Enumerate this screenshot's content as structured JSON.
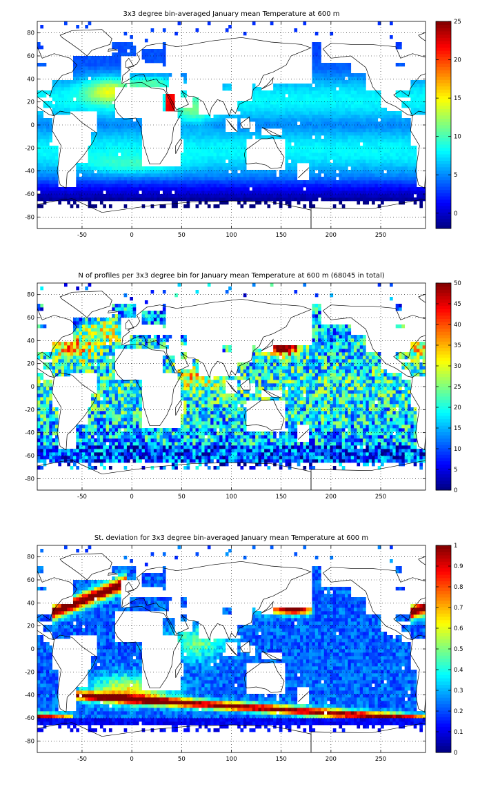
{
  "panels": [
    {
      "title": "3x3 degree bin-averaged January mean Temperature at 600 m",
      "field": "temperature",
      "chart_data": {
        "type": "heatmap",
        "title": "3x3 degree bin-averaged January mean Temperature at 600 m",
        "xlabel": "",
        "ylabel": "",
        "xlim": [
          -95,
          295
        ],
        "ylim": [
          -90,
          90
        ],
        "xticks": [
          -50,
          0,
          50,
          100,
          150,
          200,
          250
        ],
        "yticks": [
          -80,
          -60,
          -40,
          -20,
          0,
          20,
          40,
          60,
          80
        ],
        "colorbar": {
          "min": -2,
          "max": 25,
          "ticks": [
            0,
            5,
            10,
            15,
            20,
            25
          ],
          "colormap": "jet"
        },
        "bin_size_deg": 3,
        "grid": true,
        "legend": "colorbar right",
        "values_approx": [
          {
            "region": "Mediterranean outflow (North Atlantic, 20N-40N)",
            "value": 14
          },
          {
            "region": "Mediterranean Sea",
            "value": 13.5
          },
          {
            "region": "Red Sea",
            "value": 21.5
          },
          {
            "region": "Northern Indian Ocean / Arabian Sea",
            "value": 11
          },
          {
            "region": "South Atlantic / South Indian subtropics",
            "value": 9
          },
          {
            "region": "North Pacific subtropics",
            "value": 7
          },
          {
            "region": "Tropical Pacific",
            "value": 6
          },
          {
            "region": "Labrador / Nordic Seas",
            "value": 3
          },
          {
            "region": "Southern Ocean (55S-70S)",
            "value": 1.5
          }
        ]
      }
    },
    {
      "title": "N of profiles per 3x3 degree bin for January mean Temperature at 600 m (68045 in total)",
      "field": "count",
      "chart_data": {
        "type": "heatmap",
        "title": "N of profiles per 3x3 degree bin for January mean Temperature at 600 m (68045 in total)",
        "xlabel": "",
        "ylabel": "",
        "xlim": [
          -95,
          295
        ],
        "ylim": [
          -90,
          90
        ],
        "xticks": [
          -50,
          0,
          50,
          100,
          150,
          200,
          250
        ],
        "yticks": [
          -80,
          -60,
          -40,
          -20,
          0,
          20,
          40,
          60,
          80
        ],
        "colorbar": {
          "min": 0,
          "max": 50,
          "ticks": [
            0,
            5,
            10,
            15,
            20,
            25,
            30,
            35,
            40,
            45,
            50
          ],
          "colormap": "jet"
        },
        "bin_size_deg": 3,
        "grid": true,
        "legend": "colorbar right",
        "total_profiles": 68045,
        "values_approx": [
          {
            "region": "Kuroshio extension (30N-45N, 140E-165E)",
            "value": 50
          },
          {
            "region": "Western North Atlantic / Gulf Stream",
            "value": 35
          },
          {
            "region": "Northern Indian Ocean",
            "value": 30
          },
          {
            "region": "Open Pacific",
            "value": 20
          },
          {
            "region": "Southern Ocean",
            "value": 12
          }
        ]
      }
    },
    {
      "title": "St. deviation for 3x3 degree bin-averaged January mean Temperature at 600 m",
      "field": "std",
      "chart_data": {
        "type": "heatmap",
        "title": "St. deviation for 3x3 degree bin-averaged January mean Temperature at 600 m",
        "xlabel": "",
        "ylabel": "",
        "xlim": [
          -95,
          295
        ],
        "ylim": [
          -90,
          90
        ],
        "xticks": [
          -50,
          0,
          50,
          100,
          150,
          200,
          250
        ],
        "yticks": [
          -80,
          -60,
          -40,
          -20,
          0,
          20,
          40,
          60,
          80
        ],
        "colorbar": {
          "min": 0,
          "max": 1,
          "ticks": [
            0,
            0.1,
            0.2,
            0.3,
            0.4,
            0.5,
            0.6,
            0.7,
            0.8,
            0.9,
            1
          ],
          "colormap": "jet"
        },
        "bin_size_deg": 3,
        "grid": true,
        "legend": "colorbar right",
        "values_approx": [
          {
            "region": "Gulf Stream / North Atlantic Current (30N-50N)",
            "value": 1
          },
          {
            "region": "Kuroshio extension (30N-37N)",
            "value": 1
          },
          {
            "region": "Antarctic Circumpolar Current band (40S-55S)",
            "value": 0.9
          },
          {
            "region": "Open North/South Pacific",
            "value": 0.25
          },
          {
            "region": "Southern Ocean near Antarctica",
            "value": 0.08
          }
        ]
      }
    }
  ],
  "colors": {
    "ocean_nan": "#ffffff",
    "coast_line": "#000000",
    "grid": "#000000"
  }
}
